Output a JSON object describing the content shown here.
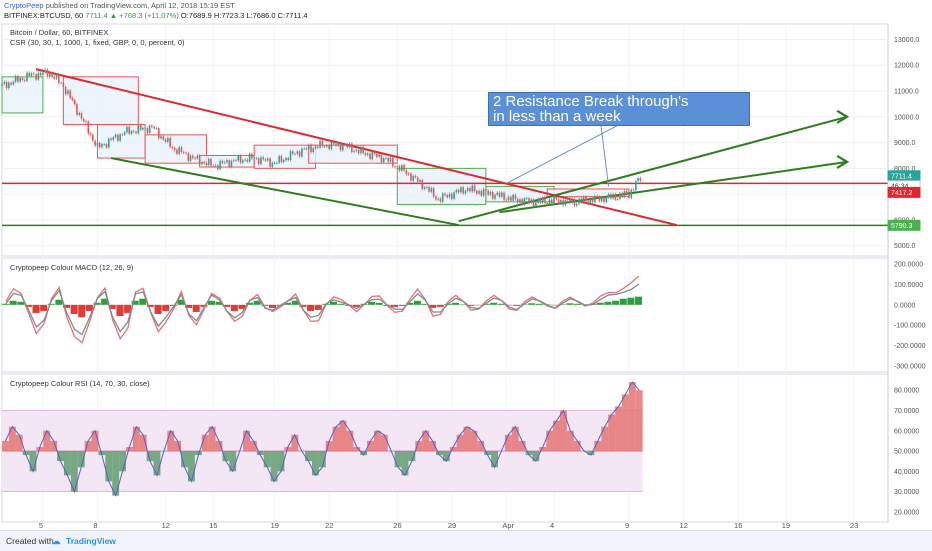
{
  "header": {
    "brand": "CryptoPeep",
    "published": "published on TradingView.com, April 12, 2018 15:19 EST",
    "symbol": "BITFINEX:BTCUSD, 60",
    "last": "7711.4",
    "change": "+768.3 (+11.07%)",
    "ohlc": "O:7689.9 H:7723.3 L:7686.0 C:7711.4"
  },
  "panes": {
    "price_title": "Bitcoin / Dollar, 60, BITFINEX",
    "price_study": "CSR (30, 30, 1, 1000, 1, fixed, GBP, 0, 0, percent, 0)",
    "macd_title": "Cryptopeep Colour MACD (12, 26, 9)",
    "rsi_title": "Cryptopeep Colour RSI (14, 70, 30, close)"
  },
  "annotation": {
    "text_line1": "2 Resistance Break through's",
    "text_line2": "in less than a week"
  },
  "price_badges": {
    "last": "7711.4",
    "timer": "46:34",
    "red_level": "7417.2",
    "green_level": "5790.3"
  },
  "footer": {
    "created_with": "Created with",
    "brand": "TradingView"
  },
  "colors": {
    "up": "#26a69a",
    "down": "#ef5350",
    "trend_red": "#e0272e",
    "trend_green": "#2e7d1e",
    "macd_fast": "#e8707a",
    "rsi_line": "#5b5fc7",
    "rsi_band": "#f3e6f5"
  },
  "chart_data": [
    {
      "type": "line",
      "title": "Bitcoin / Dollar, 60, BITFINEX",
      "x_tick_labels": [
        "5",
        "8",
        "12",
        "15",
        "19",
        "22",
        "26",
        "29",
        "Apr",
        "4",
        "9",
        "12",
        "16",
        "19",
        "23",
        "26"
      ],
      "y_tick_labels": [
        "13000.0",
        "12000.0",
        "11000.0",
        "10000.0",
        "9000.0",
        "8000.0",
        "7000.0",
        "6000.0",
        "5000.0"
      ],
      "ylim": [
        4600,
        13600
      ],
      "series": [
        {
          "points": [
            [
              0,
              11200
            ],
            [
              4,
              11600
            ],
            [
              7,
              11700
            ],
            [
              9,
              11200
            ],
            [
              12,
              9800
            ],
            [
              14,
              8800
            ],
            [
              18,
              9400
            ],
            [
              22,
              9600
            ],
            [
              25,
              8800
            ],
            [
              28,
              8400
            ],
            [
              31,
              8100
            ],
            [
              34,
              8300
            ],
            [
              37,
              8400
            ],
            [
              40,
              8200
            ],
            [
              44,
              8700
            ],
            [
              47,
              8900
            ],
            [
              50,
              8900
            ],
            [
              53,
              8600
            ],
            [
              56,
              8400
            ],
            [
              59,
              7900
            ],
            [
              62,
              7300
            ],
            [
              64,
              6800
            ],
            [
              66,
              7000
            ],
            [
              68,
              7200
            ],
            [
              70,
              7100
            ],
            [
              72,
              7000
            ],
            [
              75,
              6800
            ],
            [
              78,
              6700
            ],
            [
              81,
              6750
            ],
            [
              84,
              6700
            ],
            [
              87,
              6800
            ],
            [
              90,
              6900
            ],
            [
              92,
              7000
            ],
            [
              93,
              7400
            ],
            [
              94,
              7711
            ]
          ]
        }
      ],
      "boxes": [
        {
          "from": 0,
          "to": 6,
          "low": 10150,
          "high": 11550
        },
        {
          "from": 9,
          "to": 20,
          "low": 9700,
          "high": 11550
        },
        {
          "from": 14,
          "to": 21,
          "low": 8400,
          "high": 9700
        },
        {
          "from": 21,
          "to": 30,
          "low": 8200,
          "high": 9300
        },
        {
          "from": 29,
          "to": 37,
          "low": 8050,
          "high": 8500
        },
        {
          "from": 37,
          "to": 46,
          "low": 8000,
          "high": 8900
        },
        {
          "from": 45,
          "to": 58,
          "low": 8200,
          "high": 8900
        },
        {
          "from": 58,
          "to": 71,
          "low": 6600,
          "high": 8000
        },
        {
          "from": 71,
          "to": 81,
          "low": 6700,
          "high": 7300
        },
        {
          "from": 80,
          "to": 92,
          "low": 6900,
          "high": 7200
        }
      ],
      "trendlines": [
        {
          "color": "red",
          "from": [
            5,
            11850
          ],
          "to": [
            99,
            5800
          ]
        },
        {
          "color": "green",
          "from": [
            16,
            8400
          ],
          "to": [
            67,
            5800
          ]
        },
        {
          "color": "green",
          "from": [
            67,
            5950
          ],
          "to": [
            124,
            10000
          ]
        },
        {
          "color": "green",
          "from": [
            73,
            6300
          ],
          "to": [
            124,
            8250
          ]
        }
      ],
      "horizontal_levels": [
        7417.2,
        5790.3
      ]
    },
    {
      "type": "bar",
      "title": "Cryptopeep Colour MACD (12, 26, 9)",
      "y_tick_labels": [
        "200.0000",
        "100.0000",
        "0.0000",
        "-100.0000",
        "-200.0000",
        "-300.0000"
      ],
      "ylim": [
        -330,
        230
      ],
      "series": [
        {
          "name": "histogram",
          "values": [
            10,
            40,
            30,
            -20,
            -80,
            -60,
            10,
            50,
            -30,
            -90,
            -120,
            -60,
            20,
            60,
            -40,
            -110,
            -80,
            40,
            60,
            -20,
            -90,
            -60,
            -10,
            50,
            -30,
            -70,
            -20,
            40,
            30,
            -20,
            -60,
            -40,
            20,
            40,
            -10,
            -30,
            -10,
            20,
            40,
            -20,
            -60,
            -50,
            10,
            30,
            10,
            -10,
            -20,
            10,
            30,
            20,
            -10,
            -20,
            -10,
            20,
            40,
            10,
            -30,
            -20,
            10,
            20,
            5,
            -10,
            -5,
            10,
            20,
            10,
            -5,
            -10,
            5,
            15,
            10,
            5,
            -5,
            5,
            15,
            10,
            5,
            10,
            20,
            30,
            40,
            60,
            70,
            80
          ]
        }
      ]
    },
    {
      "type": "line",
      "title": "Cryptopeep Colour RSI (14, 70, 30, close)",
      "y_tick_labels": [
        "80.0000",
        "70.0000",
        "60.0000",
        "50.0000",
        "40.0000",
        "30.0000",
        "20.0000"
      ],
      "ylim": [
        15,
        88
      ],
      "bands": {
        "upper": 70,
        "mid": 50,
        "lower": 30
      },
      "series": [
        {
          "values": [
            55,
            62,
            58,
            48,
            40,
            52,
            60,
            55,
            45,
            38,
            30,
            42,
            55,
            60,
            48,
            35,
            28,
            40,
            52,
            62,
            58,
            45,
            38,
            50,
            60,
            55,
            42,
            35,
            48,
            58,
            62,
            55,
            45,
            40,
            50,
            60,
            55,
            48,
            42,
            35,
            40,
            52,
            58,
            50,
            45,
            38,
            42,
            55,
            62,
            65,
            60,
            52,
            48,
            55,
            60,
            58,
            50,
            42,
            38,
            45,
            55,
            60,
            55,
            48,
            45,
            52,
            58,
            62,
            60,
            55,
            48,
            42,
            50,
            58,
            62,
            55,
            48,
            45,
            52,
            60,
            65,
            70,
            60,
            55,
            50,
            48,
            55,
            62,
            68,
            72,
            78,
            84,
            80
          ]
        }
      ]
    }
  ]
}
